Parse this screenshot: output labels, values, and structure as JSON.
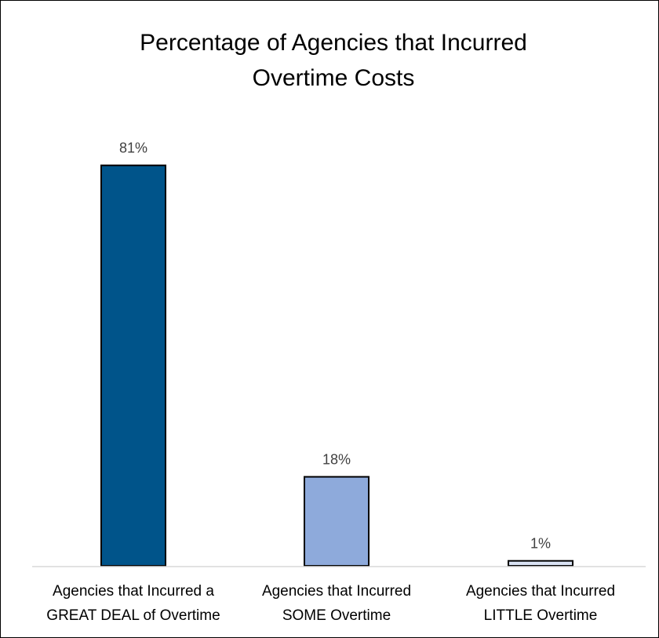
{
  "chart_data": {
    "type": "bar",
    "title_lines": [
      "Percentage of Agencies that Incurred",
      "Overtime Costs"
    ],
    "categories": [
      [
        "Agencies that Incurred a",
        "GREAT DEAL of Overtime"
      ],
      [
        "Agencies that Incurred",
        "SOME Overtime"
      ],
      [
        "Agencies that Incurred",
        "LITTLE Overtime"
      ]
    ],
    "values": [
      81,
      18,
      1
    ],
    "value_labels": [
      "81%",
      "18%",
      "1%"
    ],
    "bar_colors": [
      "#00548a",
      "#8eaadb",
      "#d9e2f3"
    ],
    "ylim": [
      0,
      100
    ],
    "grid": false,
    "legend": "none"
  }
}
